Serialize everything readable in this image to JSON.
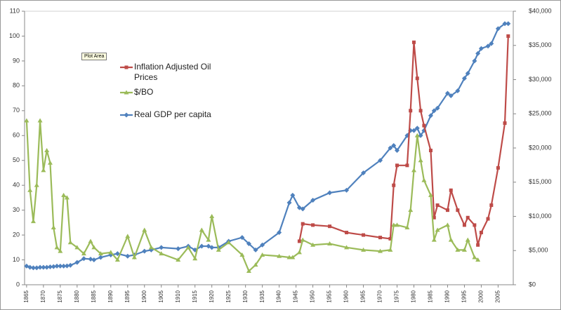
{
  "chart_data": {
    "type": "line",
    "tooltip": "Plot Area",
    "x": [
      1865,
      1866,
      1867,
      1868,
      1869,
      1870,
      1871,
      1872,
      1873,
      1874,
      1875,
      1876,
      1877,
      1878,
      1880,
      1882,
      1884,
      1885,
      1887,
      1890,
      1892,
      1895,
      1897,
      1900,
      1902,
      1905,
      1910,
      1913,
      1915,
      1917,
      1919,
      1920,
      1922,
      1925,
      1929,
      1931,
      1933,
      1935,
      1940,
      1943,
      1944,
      1946,
      1947,
      1950,
      1955,
      1960,
      1965,
      1970,
      1973,
      1974,
      1975,
      1978,
      1979,
      1980,
      1981,
      1982,
      1983,
      1985,
      1986,
      1987,
      1990,
      1991,
      1993,
      1995,
      1996,
      1998,
      1999,
      2000,
      2002,
      2003,
      2005,
      2007,
      2008
    ],
    "series": [
      {
        "name": "Inflation Adjusted Oil Prices",
        "color": "#be4b48",
        "marker": "square",
        "axis": "y",
        "values": [
          null,
          null,
          null,
          null,
          null,
          null,
          null,
          null,
          null,
          null,
          null,
          null,
          null,
          null,
          null,
          null,
          null,
          null,
          null,
          null,
          null,
          null,
          null,
          null,
          null,
          null,
          null,
          null,
          null,
          null,
          null,
          null,
          null,
          null,
          null,
          null,
          null,
          null,
          null,
          null,
          null,
          17.5,
          24.5,
          24,
          23.5,
          21,
          20,
          19,
          18.5,
          40,
          48,
          48,
          70,
          97.5,
          83,
          70,
          64,
          54,
          27,
          32,
          30,
          38,
          30,
          24,
          27,
          24,
          16,
          21,
          26.5,
          32,
          47,
          65,
          100
        ]
      },
      {
        "name": "$/BO",
        "color": "#9bbb59",
        "marker": "triangle",
        "axis": "y",
        "values": [
          66,
          38,
          25.5,
          40,
          66,
          46,
          54,
          49,
          23,
          15,
          13.5,
          36,
          35,
          17,
          15,
          12.5,
          17.5,
          15,
          12.5,
          13,
          10,
          19.5,
          11,
          22,
          15,
          12.5,
          10,
          15,
          10.5,
          22,
          18,
          27.5,
          14,
          17,
          12,
          5.5,
          8,
          12,
          11.5,
          11,
          11,
          13,
          18,
          16,
          16.5,
          15,
          14,
          13.5,
          14,
          24,
          24,
          23,
          30,
          46,
          60,
          50,
          42,
          36,
          18,
          22,
          24,
          18,
          14,
          14,
          18,
          11,
          10,
          null,
          null,
          null,
          null,
          null,
          null
        ]
      },
      {
        "name": "Real GDP per capita",
        "color": "#4f81bd",
        "marker": "diamond",
        "axis": "y2",
        "values": [
          2730,
          2550,
          2470,
          2470,
          2550,
          2550,
          2550,
          2620,
          2650,
          2730,
          2730,
          2730,
          2760,
          2840,
          3270,
          3820,
          3750,
          3640,
          4000,
          4360,
          4550,
          4180,
          4360,
          4910,
          5090,
          5450,
          5270,
          5640,
          5090,
          5640,
          5640,
          5450,
          5450,
          6360,
          6910,
          6000,
          5090,
          5820,
          7640,
          12000,
          13090,
          11270,
          11090,
          12360,
          13450,
          13820,
          16360,
          18180,
          20000,
          20360,
          19640,
          21820,
          22550,
          22550,
          22900,
          21820,
          22550,
          24730,
          25450,
          25820,
          28000,
          27640,
          28360,
          30180,
          30910,
          32730,
          33820,
          34550,
          34900,
          35270,
          37450,
          38180,
          38180
        ]
      }
    ],
    "xlim": [
      1864.4,
      2009.5
    ],
    "xticks": [
      1865,
      1870,
      1875,
      1880,
      1885,
      1890,
      1895,
      1900,
      1905,
      1910,
      1915,
      1920,
      1925,
      1930,
      1935,
      1940,
      1945,
      1950,
      1955,
      1960,
      1965,
      1970,
      1975,
      1980,
      1985,
      1990,
      1995,
      2000,
      2005
    ],
    "ylim": [
      0,
      110
    ],
    "yticks": [
      0,
      10,
      20,
      30,
      40,
      50,
      60,
      70,
      80,
      90,
      100,
      110
    ],
    "y2lim": [
      0,
      40000
    ],
    "y2ticks": [
      {
        "value": 0,
        "label": "$0"
      },
      {
        "value": 5000,
        "label": "$5,000"
      },
      {
        "value": 10000,
        "label": "$10,000"
      },
      {
        "value": 15000,
        "label": "$15,000"
      },
      {
        "value": 20000,
        "label": "$20,000"
      },
      {
        "value": 25000,
        "label": "$25,000"
      },
      {
        "value": 30000,
        "label": "$30,000"
      },
      {
        "value": 35000,
        "label": "$35,000"
      },
      {
        "value": 40000,
        "label": "$40,000"
      }
    ],
    "grid": false
  }
}
